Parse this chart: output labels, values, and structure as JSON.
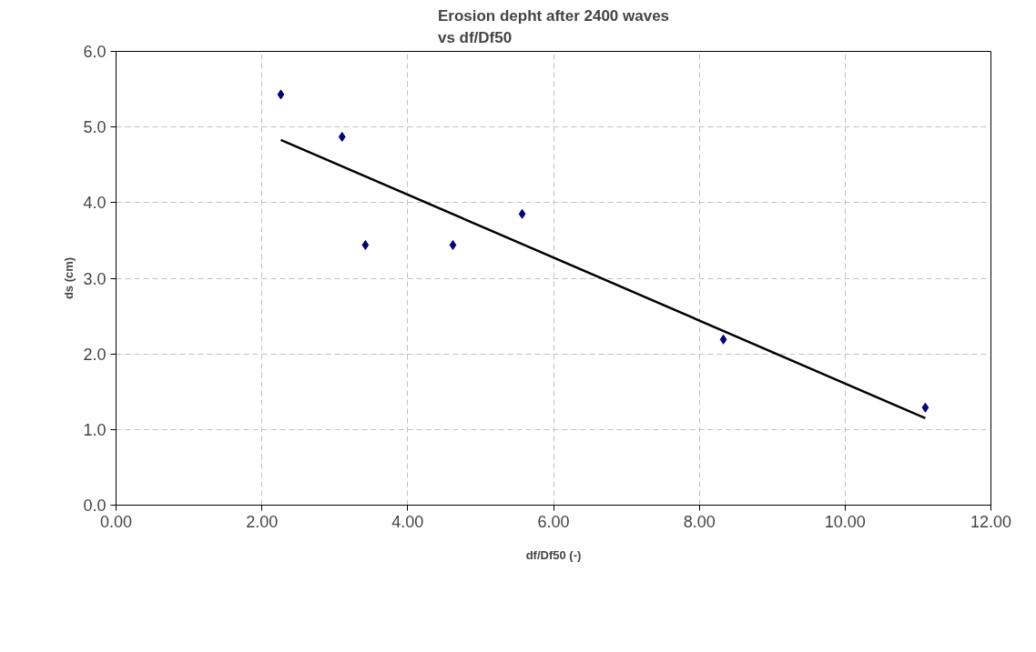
{
  "chart_data": {
    "type": "scatter",
    "title": "Erosion depht after 2400 waves\nvs df/Df50",
    "xlabel": "df/Df50 (-)",
    "ylabel": "ds (cm)",
    "series": [
      {
        "color": "#000080",
        "marker": "diamond",
        "x": [
          2.26,
          3.1,
          3.42,
          4.62,
          5.57,
          8.33,
          11.1
        ],
        "values": [
          5.43,
          4.87,
          3.44,
          3.44,
          3.85,
          2.19,
          1.29
        ]
      },
      {
        "type": "line",
        "color": "#000000",
        "marker": "none",
        "x": [
          2.26,
          11.1
        ],
        "values": [
          4.83,
          1.15
        ]
      }
    ],
    "xlim": [
      0,
      12
    ],
    "ylim": [
      0,
      6
    ],
    "xticks": [
      {
        "value": 0,
        "label": "0.00"
      },
      {
        "value": 2,
        "label": "2.00"
      },
      {
        "value": 4,
        "label": "4.00"
      },
      {
        "value": 6,
        "label": "6.00"
      },
      {
        "value": 8,
        "label": "8.00"
      },
      {
        "value": 10,
        "label": "10.00"
      },
      {
        "value": 12,
        "label": "12.00"
      }
    ],
    "yticks": [
      {
        "value": 0,
        "label": "0.0"
      },
      {
        "value": 1,
        "label": "1.0"
      },
      {
        "value": 2,
        "label": "2.0"
      },
      {
        "value": 3,
        "label": "3.0"
      },
      {
        "value": 4,
        "label": "4.0"
      },
      {
        "value": 5,
        "label": "5.0"
      },
      {
        "value": 6,
        "label": "6.0"
      }
    ],
    "grid": true
  }
}
